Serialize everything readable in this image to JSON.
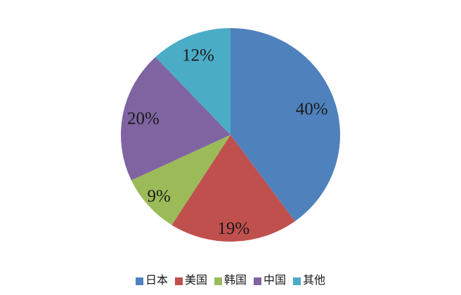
{
  "chart_data": {
    "type": "pie",
    "title": "",
    "slices": [
      {
        "label": "日本",
        "value": 40,
        "display": "40%",
        "color": "#4F81BD"
      },
      {
        "label": "美国",
        "value": 19,
        "display": "19%",
        "color": "#C0504D"
      },
      {
        "label": "韩国",
        "value": 9,
        "display": "9%",
        "color": "#9BBB59"
      },
      {
        "label": "中国",
        "value": 20,
        "display": "20%",
        "color": "#8064A2"
      },
      {
        "label": "其他",
        "value": 12,
        "display": "12%",
        "color": "#4BACC6"
      }
    ],
    "start_angle_deg": 0,
    "direction": "clockwise",
    "legend_position": "bottom",
    "label_radius_fractions": [
      0.78,
      0.88,
      0.87,
      0.81,
      0.8
    ],
    "label_color": "#1a1a1a",
    "background_color": "#ffffff"
  }
}
